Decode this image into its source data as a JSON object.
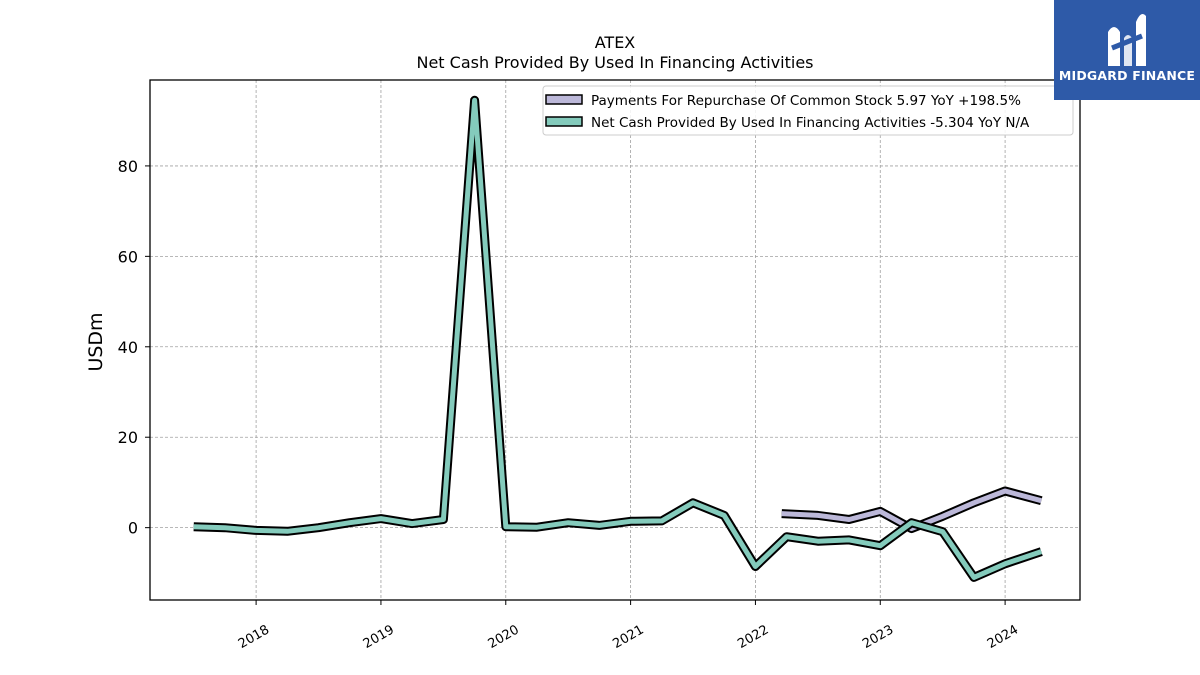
{
  "chart_data": {
    "type": "line",
    "title": "ATEX",
    "subtitle": "Net Cash Provided By Used In Financing Activities",
    "ylabel": "USDm",
    "xlabel": "",
    "xlim": [
      2017.15,
      2024.6
    ],
    "ylim": [
      -16,
      99
    ],
    "yticks": [
      0,
      20,
      40,
      60,
      80
    ],
    "xticks": [
      2018,
      2019,
      2020,
      2021,
      2022,
      2023,
      2024
    ],
    "grid": true,
    "legend_position": "top-right",
    "series": [
      {
        "name": "Payments For Repurchase Of Common Stock",
        "legend_label": "Payments For Repurchase Of Common Stock  5.97 YoY +198.5%",
        "color": "#bcb8d9",
        "x": [
          2022.21,
          2022.5,
          2022.75,
          2023.0,
          2023.25,
          2023.5,
          2023.75,
          2024.0,
          2024.29
        ],
        "y": [
          3.1,
          2.7,
          1.8,
          3.6,
          -0.2,
          2.5,
          5.5,
          8.1,
          5.97
        ]
      },
      {
        "name": "Net Cash Provided By Used In Financing Activities",
        "legend_label": "Net Cash Provided By Used In Financing Activities  -5.304 YoY N/A",
        "color": "#84cbbc",
        "x": [
          2017.5,
          2017.75,
          2018.0,
          2018.25,
          2018.5,
          2018.75,
          2019.0,
          2019.25,
          2019.5,
          2019.75,
          2020.0,
          2020.25,
          2020.5,
          2020.75,
          2021.0,
          2021.25,
          2021.5,
          2021.75,
          2022.0,
          2022.25,
          2022.5,
          2022.75,
          2023.0,
          2023.25,
          2023.5,
          2023.75,
          2024.0,
          2024.29
        ],
        "y": [
          0.2,
          0.0,
          -0.6,
          -0.8,
          0.0,
          1.1,
          2.0,
          0.9,
          1.8,
          94.5,
          0.2,
          0.1,
          1.1,
          0.5,
          1.4,
          1.5,
          5.5,
          2.7,
          -8.6,
          -2.0,
          -3.0,
          -2.7,
          -4.0,
          1.1,
          -0.9,
          -11.0,
          -8.0,
          -5.304
        ]
      }
    ]
  },
  "logo": {
    "text": "MIDGARD FINANCE"
  }
}
